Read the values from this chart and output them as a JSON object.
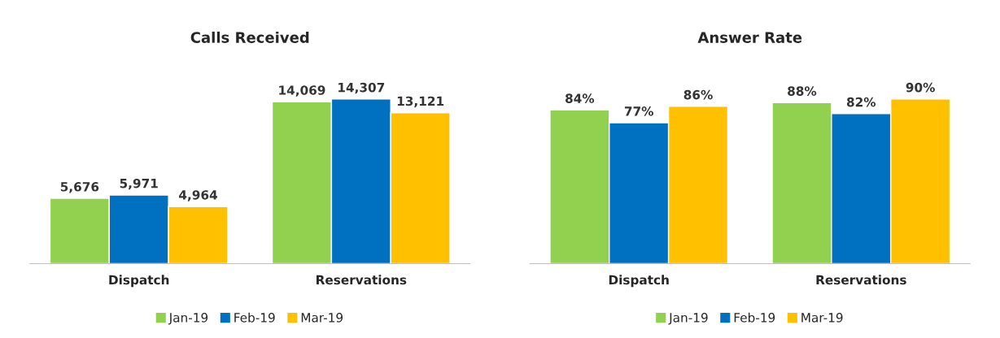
{
  "chart_data": [
    {
      "type": "bar",
      "title": "Calls Received",
      "categories": [
        "Dispatch",
        "Reservations"
      ],
      "series": [
        {
          "name": "Jan-19",
          "color": "#92d050",
          "values": [
            5676,
            14069
          ],
          "value_labels": [
            "5,676",
            "14,069"
          ]
        },
        {
          "name": "Feb-19",
          "color": "#0070c0",
          "values": [
            5971,
            14307
          ],
          "value_labels": [
            "5,971",
            "14,307"
          ]
        },
        {
          "name": "Mar-19",
          "color": "#ffc000",
          "values": [
            4964,
            13121
          ],
          "value_labels": [
            "4,964",
            "13,121"
          ]
        }
      ],
      "legend": "bottom"
    },
    {
      "type": "bar",
      "title": "Answer Rate",
      "categories": [
        "Dispatch",
        "Reservations"
      ],
      "series": [
        {
          "name": "Jan-19",
          "color": "#92d050",
          "values": [
            84,
            88
          ],
          "value_labels": [
            "84%",
            "88%"
          ]
        },
        {
          "name": "Feb-19",
          "color": "#0070c0",
          "values": [
            77,
            82
          ],
          "value_labels": [
            "77%",
            "82%"
          ]
        },
        {
          "name": "Mar-19",
          "color": "#ffc000",
          "values": [
            86,
            90
          ],
          "value_labels": [
            "86%",
            "90%"
          ]
        }
      ],
      "legend": "bottom"
    }
  ]
}
